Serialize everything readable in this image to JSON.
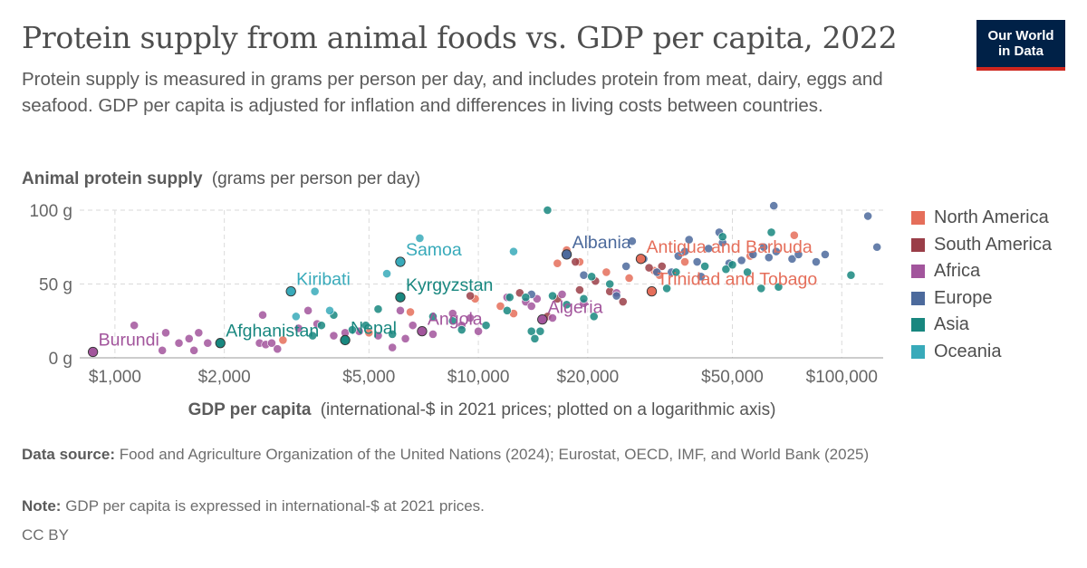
{
  "header": {
    "title": "Protein supply from animal foods vs. GDP per capita, 2022",
    "subtitle": "Protein supply is measured in grams per person per day, and includes protein from meat, dairy, eggs and seafood. GDP per capita is adjusted for inflation and differences in living costs between countries.",
    "logo_line1": "Our World",
    "logo_line2": "in Data"
  },
  "footer": {
    "source_label": "Data source:",
    "source_text": "Food and Agriculture Organization of the United Nations (2024); Eurostat, OECD, IMF, and World Bank (2025)",
    "note_label": "Note:",
    "note_text": "GDP per capita is expressed in international-$ at 2021 prices.",
    "license": "CC BY"
  },
  "chart_data": {
    "type": "scatter",
    "y_axis_title": "Animal protein supply",
    "y_axis_unit": "(grams per person per day)",
    "x_axis_title": "GDP per capita",
    "x_axis_unit": "(international-$ in 2021 prices; plotted on a logarithmic axis)",
    "x_scale": "log",
    "xlim": [
      800,
      130000
    ],
    "ylim": [
      0,
      100
    ],
    "x_ticks": [
      {
        "value": 1000,
        "label": "$1,000"
      },
      {
        "value": 2000,
        "label": "$2,000"
      },
      {
        "value": 5000,
        "label": "$5,000"
      },
      {
        "value": 10000,
        "label": "$10,000"
      },
      {
        "value": 20000,
        "label": "$20,000"
      },
      {
        "value": 50000,
        "label": "$50,000"
      },
      {
        "value": 100000,
        "label": "$100,000"
      }
    ],
    "y_ticks": [
      {
        "value": 0,
        "label": "0 g"
      },
      {
        "value": 50,
        "label": "50 g"
      },
      {
        "value": 100,
        "label": "100 g"
      }
    ],
    "grid": true,
    "legend_position": "right",
    "series": [
      {
        "name": "North America",
        "color": "#e56e5a",
        "points": [
          [
            2900,
            12
          ],
          [
            5000,
            17
          ],
          [
            6500,
            31
          ],
          [
            9800,
            40
          ],
          [
            11500,
            35
          ],
          [
            12500,
            30
          ],
          [
            16500,
            64
          ],
          [
            17500,
            73
          ],
          [
            19000,
            65
          ],
          [
            26000,
            54
          ],
          [
            28000,
            67
          ],
          [
            30000,
            45
          ],
          [
            31500,
            56
          ],
          [
            37000,
            65
          ],
          [
            56000,
            69
          ],
          [
            74000,
            83
          ],
          [
            30500,
            59
          ],
          [
            22500,
            58
          ]
        ]
      },
      {
        "name": "South America",
        "color": "#9a3e48",
        "points": [
          [
            9500,
            42
          ],
          [
            13000,
            44
          ],
          [
            15500,
            28
          ],
          [
            18500,
            65
          ],
          [
            19000,
            46
          ],
          [
            23000,
            45
          ],
          [
            29500,
            61
          ],
          [
            32000,
            62
          ],
          [
            21000,
            52
          ],
          [
            16500,
            40
          ],
          [
            25000,
            38
          ]
        ]
      },
      {
        "name": "Africa",
        "color": "#a2559c",
        "points": [
          [
            870,
            4
          ],
          [
            1130,
            22
          ],
          [
            1350,
            5
          ],
          [
            1380,
            17
          ],
          [
            1500,
            10
          ],
          [
            1600,
            13
          ],
          [
            1650,
            5
          ],
          [
            1700,
            17
          ],
          [
            1800,
            10
          ],
          [
            2500,
            10
          ],
          [
            2550,
            29
          ],
          [
            2600,
            9
          ],
          [
            2700,
            10
          ],
          [
            2800,
            6
          ],
          [
            3200,
            20
          ],
          [
            3400,
            32
          ],
          [
            3600,
            23
          ],
          [
            4000,
            15
          ],
          [
            4300,
            17
          ],
          [
            4700,
            18
          ],
          [
            5300,
            15
          ],
          [
            5800,
            7
          ],
          [
            6100,
            32
          ],
          [
            6300,
            13
          ],
          [
            7000,
            18
          ],
          [
            7500,
            16
          ],
          [
            8500,
            30
          ],
          [
            9000,
            22
          ],
          [
            9500,
            27
          ],
          [
            10000,
            18
          ],
          [
            12000,
            41
          ],
          [
            13500,
            38
          ],
          [
            14000,
            35
          ],
          [
            15000,
            26
          ],
          [
            16000,
            27
          ],
          [
            17000,
            43
          ],
          [
            19500,
            37
          ],
          [
            24000,
            44
          ],
          [
            14500,
            40
          ],
          [
            6600,
            22
          ]
        ]
      },
      {
        "name": "Europe",
        "color": "#4c6a9c",
        "points": [
          [
            14000,
            43
          ],
          [
            17500,
            70
          ],
          [
            19500,
            56
          ],
          [
            24000,
            42
          ],
          [
            25500,
            62
          ],
          [
            26500,
            79
          ],
          [
            28500,
            67
          ],
          [
            34000,
            58
          ],
          [
            37000,
            72
          ],
          [
            38000,
            80
          ],
          [
            40000,
            65
          ],
          [
            41000,
            55
          ],
          [
            43000,
            74
          ],
          [
            46000,
            85
          ],
          [
            47000,
            78
          ],
          [
            49000,
            64
          ],
          [
            53000,
            66
          ],
          [
            57000,
            70
          ],
          [
            61000,
            75
          ],
          [
            63000,
            68
          ],
          [
            65000,
            103
          ],
          [
            66000,
            72
          ],
          [
            73000,
            67
          ],
          [
            76000,
            70
          ],
          [
            85000,
            65
          ],
          [
            90000,
            70
          ],
          [
            118000,
            96
          ],
          [
            125000,
            75
          ],
          [
            31000,
            58
          ],
          [
            35500,
            69
          ]
        ]
      },
      {
        "name": "Asia",
        "color": "#18877f",
        "points": [
          [
            1950,
            10
          ],
          [
            3500,
            15
          ],
          [
            3700,
            22
          ],
          [
            4000,
            29
          ],
          [
            4300,
            12
          ],
          [
            4500,
            19
          ],
          [
            4900,
            22
          ],
          [
            5300,
            33
          ],
          [
            5800,
            16
          ],
          [
            6100,
            41
          ],
          [
            8500,
            25
          ],
          [
            9000,
            19
          ],
          [
            10500,
            22
          ],
          [
            12000,
            32
          ],
          [
            13500,
            41
          ],
          [
            14000,
            18
          ],
          [
            14300,
            13
          ],
          [
            14800,
            18
          ],
          [
            15500,
            100
          ],
          [
            16000,
            42
          ],
          [
            17500,
            36
          ],
          [
            19500,
            40
          ],
          [
            20500,
            55
          ],
          [
            20800,
            28
          ],
          [
            23000,
            50
          ],
          [
            33000,
            47
          ],
          [
            35000,
            58
          ],
          [
            42000,
            62
          ],
          [
            47000,
            82
          ],
          [
            48000,
            60
          ],
          [
            50000,
            63
          ],
          [
            55000,
            58
          ],
          [
            60000,
            47
          ],
          [
            64000,
            85
          ],
          [
            67000,
            48
          ],
          [
            106000,
            56
          ],
          [
            12200,
            41
          ],
          [
            7500,
            28
          ]
        ]
      },
      {
        "name": "Oceania",
        "color": "#38aaba",
        "points": [
          [
            3050,
            45
          ],
          [
            3550,
            45
          ],
          [
            3150,
            28
          ],
          [
            3900,
            32
          ],
          [
            5600,
            57
          ],
          [
            6100,
            65
          ],
          [
            6900,
            81
          ],
          [
            12500,
            72
          ]
        ]
      }
    ],
    "annotations": [
      {
        "text": "Burundi",
        "x": 870,
        "y": 4,
        "series": "Africa"
      },
      {
        "text": "Afghanistan",
        "x": 1950,
        "y": 10,
        "series": "Asia"
      },
      {
        "text": "Kiribati",
        "x": 3050,
        "y": 45,
        "series": "Oceania"
      },
      {
        "text": "Samoa",
        "x": 6100,
        "y": 65,
        "series": "Oceania"
      },
      {
        "text": "Nepal",
        "x": 4300,
        "y": 12,
        "series": "Asia"
      },
      {
        "text": "Kyrgyzstan",
        "x": 6100,
        "y": 41,
        "series": "Asia"
      },
      {
        "text": "Angola",
        "x": 7000,
        "y": 18,
        "series": "Africa"
      },
      {
        "text": "Algeria",
        "x": 15000,
        "y": 26,
        "series": "Africa"
      },
      {
        "text": "Albania",
        "x": 17500,
        "y": 70,
        "series": "Europe"
      },
      {
        "text": "Antigua and Barbuda",
        "x": 28000,
        "y": 67,
        "series": "North America"
      },
      {
        "text": "Trinidad and Tobago",
        "x": 30000,
        "y": 45,
        "series": "North America"
      }
    ]
  }
}
